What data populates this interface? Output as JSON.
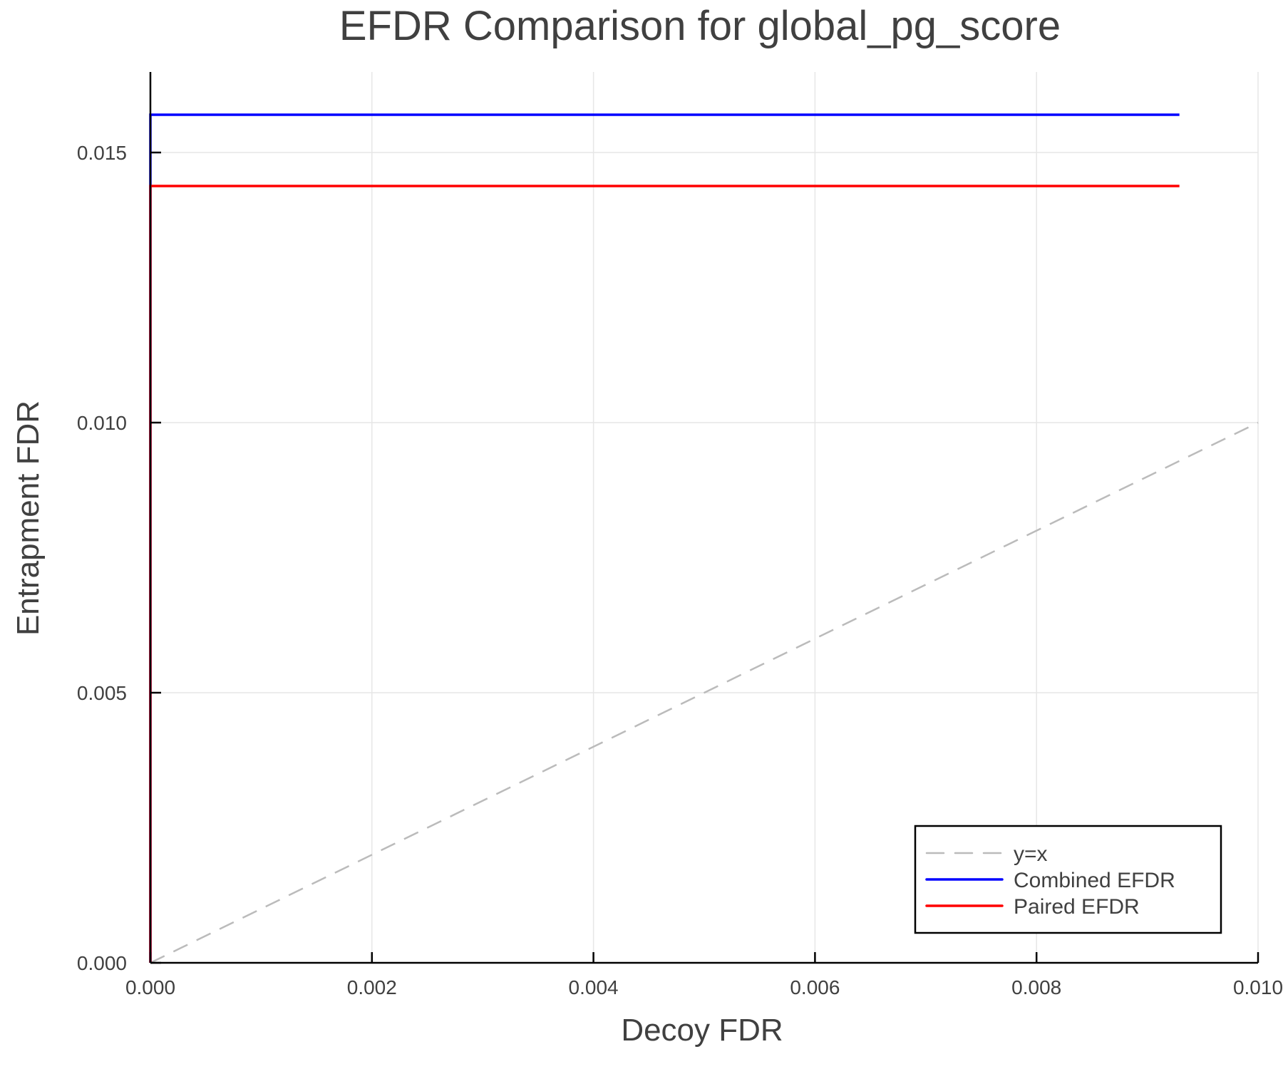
{
  "chart_data": {
    "type": "line",
    "title": "EFDR Comparison for global_pg_score",
    "xlabel": "Decoy FDR",
    "ylabel": "Entrapment FDR",
    "xlim": [
      0.0,
      0.01
    ],
    "ylim": [
      0.0,
      0.0165
    ],
    "x_ticks": [
      "0.000",
      "0.002",
      "0.004",
      "0.006",
      "0.008",
      "0.010"
    ],
    "x_tick_values": [
      0.0,
      0.002,
      0.004,
      0.006,
      0.008,
      0.01
    ],
    "y_ticks": [
      "0.000",
      "0.005",
      "0.010",
      "0.015"
    ],
    "y_tick_values": [
      0.0,
      0.005,
      0.01,
      0.015
    ],
    "grid": true,
    "legend_position": "bottom-right",
    "series": [
      {
        "name": "y=x",
        "color": "#bbbbbb",
        "style": "dashed",
        "x": [
          0.0,
          0.01
        ],
        "y": [
          0.0,
          0.01
        ]
      },
      {
        "name": "Combined EFDR",
        "color": "#0000ff",
        "style": "solid",
        "x": [
          0.0,
          0.0,
          0.00929
        ],
        "y": [
          0.0,
          0.0157,
          0.0157
        ]
      },
      {
        "name": "Paired EFDR",
        "color": "#ff0000",
        "style": "solid",
        "x": [
          0.0,
          0.0,
          0.00929
        ],
        "y": [
          0.0,
          0.01438,
          0.01438
        ]
      }
    ]
  }
}
